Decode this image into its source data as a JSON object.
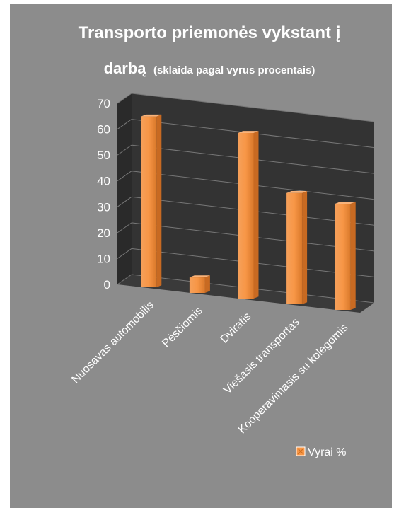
{
  "chart_data": {
    "type": "bar",
    "title": "Transporto priemonės vykstant į",
    "subtitle_bold": "darbą",
    "subtitle": "(sklaida pagal vyrus procentais)",
    "categories": [
      "Nuosavas automobilis",
      "Pėsčiomis",
      "Dviratis",
      "Viešasis transportas",
      "Kooperavimasis su kolegomis"
    ],
    "series": [
      {
        "name": "Vyrai %",
        "values": [
          66,
          6,
          64,
          43,
          41
        ]
      }
    ],
    "yticks": [
      "0",
      "10",
      "20",
      "30",
      "40",
      "50",
      "60",
      "70"
    ],
    "ylim": [
      0,
      70
    ],
    "grid": true,
    "legend_position": "right",
    "colors": {
      "bar": "#f79646",
      "background": "#8c8c8c",
      "wall": "#333333",
      "floor": "#3a3a3a",
      "gridline": "#777777"
    }
  }
}
